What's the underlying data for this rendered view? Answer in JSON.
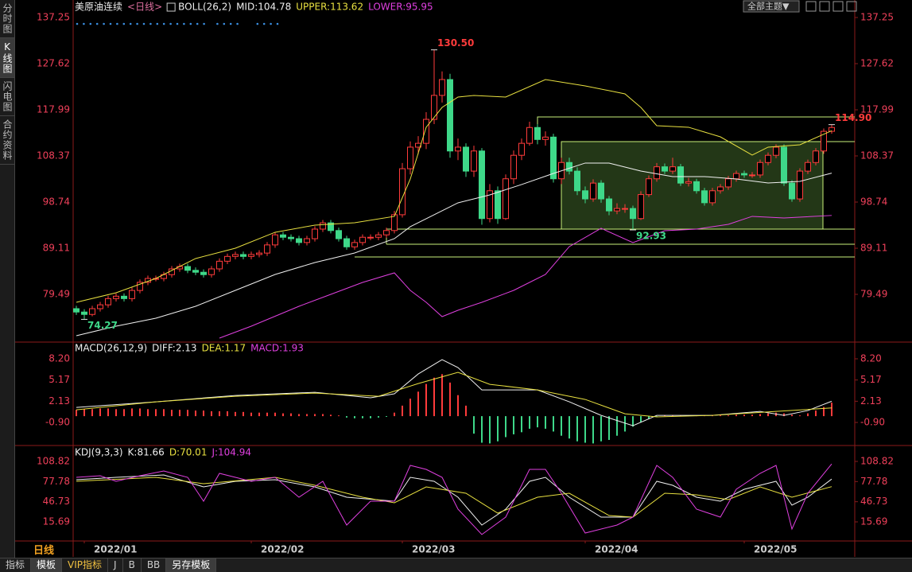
{
  "ui": {
    "side_tabs": [
      "分时图",
      "K线图",
      "闪电图",
      "合约资料"
    ],
    "theme_button": "全部主题▼",
    "period": "日线",
    "bottom_tabs": [
      "指标",
      "模板",
      "VIP指标",
      "J",
      "B",
      "BB",
      "另存模板"
    ]
  },
  "chart_data": [
    {
      "type": "candlestick",
      "title": "美原油连续",
      "period_label": "<日线>",
      "indicator": "BOLL(26,2)",
      "ylim": [
        69.86,
        138.41
      ],
      "yticks": [
        137.25,
        127.62,
        117.99,
        108.37,
        98.74,
        89.11,
        79.49
      ],
      "up_color": "#ff3b3b",
      "down_color": "#3ed889",
      "candles": {
        "open": [
          76.5,
          75.8,
          75.3,
          76.5,
          77.3,
          78.6,
          79.1,
          78.6,
          80.3,
          82.0,
          82.8,
          82.8,
          83.6,
          84.8,
          85.3,
          84.5,
          84.1,
          83.6,
          84.8,
          86.4,
          87.4,
          87.8,
          87.4,
          87.8,
          88.1,
          89.8,
          91.9,
          91.4,
          91.1,
          90.3,
          91.1,
          93.1,
          94.4,
          92.8,
          91.1,
          89.4,
          90.3,
          91.4,
          91.4,
          91.9,
          92.8,
          96.1,
          105.7,
          110.2,
          111.0,
          116.0,
          121.0,
          124.3,
          109.4,
          110.2,
          105.2,
          109.4,
          95.3,
          101.1,
          95.3,
          103.6,
          108.5,
          111.0,
          114.3,
          111.8,
          112.3,
          103.6,
          107.0,
          105.2,
          101.1,
          99.4,
          102.7,
          99.4,
          96.9,
          97.4,
          97.4,
          95.3,
          100.3,
          103.6,
          106.1,
          105.2,
          106.1,
          102.7,
          103.0,
          101.1,
          98.6,
          101.1,
          101.9,
          103.6,
          104.7,
          104.4,
          104.4,
          107.0,
          108.5,
          110.2,
          102.7,
          99.4,
          105.2,
          107.0,
          109.4,
          113.5
        ],
        "high": [
          77.1,
          76.4,
          77.1,
          77.9,
          79.2,
          79.7,
          79.7,
          80.9,
          82.6,
          83.4,
          83.4,
          84.2,
          85.4,
          85.9,
          85.9,
          85.1,
          84.7,
          85.4,
          87.0,
          88.0,
          88.4,
          88.4,
          88.4,
          88.7,
          90.4,
          92.5,
          92.5,
          92.0,
          91.7,
          91.7,
          93.7,
          95.0,
          95.0,
          93.4,
          91.7,
          90.9,
          92.0,
          92.0,
          92.5,
          93.4,
          96.9,
          106.9,
          111.4,
          112.5,
          117.5,
          130.5,
          126.0,
          125.5,
          112.0,
          111.0,
          110.5,
          110.0,
          102.5,
          102.0,
          104.5,
          109.5,
          112.0,
          115.5,
          115.0,
          113.5,
          113.0,
          108.0,
          108.0,
          106.0,
          102.0,
          103.5,
          103.3,
          100.0,
          98.5,
          98.3,
          98.0,
          101.0,
          104.3,
          106.9,
          106.8,
          108.0,
          106.7,
          103.8,
          103.6,
          101.7,
          101.7,
          102.5,
          104.2,
          105.3,
          105.3,
          105.0,
          107.6,
          109.1,
          110.8,
          110.8,
          103.3,
          105.8,
          107.6,
          110.0,
          114.1,
          114.9
        ],
        "low": [
          75.2,
          74.27,
          74.9,
          75.9,
          76.7,
          78.0,
          78.0,
          78.0,
          79.7,
          81.4,
          82.2,
          82.2,
          83.0,
          84.2,
          83.9,
          83.5,
          83.0,
          83.0,
          84.2,
          85.8,
          86.8,
          86.8,
          86.8,
          87.2,
          87.5,
          89.2,
          90.8,
          90.5,
          89.7,
          89.7,
          90.5,
          92.5,
          92.2,
          90.5,
          88.8,
          88.8,
          89.7,
          90.8,
          90.8,
          91.3,
          92.2,
          95.5,
          104.5,
          108.7,
          109.8,
          115.0,
          119.5,
          108.0,
          107.5,
          104.0,
          104.0,
          94.0,
          94.5,
          94.2,
          95.0,
          102.5,
          107.5,
          110.5,
          110.8,
          110.5,
          102.8,
          102.5,
          104.5,
          100.2,
          98.5,
          98.8,
          98.6,
          96.0,
          96.2,
          96.5,
          92.93,
          95.0,
          99.8,
          103.0,
          104.6,
          104.6,
          102.1,
          102.0,
          100.5,
          98.0,
          98.0,
          100.5,
          101.3,
          103.0,
          103.8,
          103.8,
          103.8,
          106.4,
          107.9,
          102.1,
          98.8,
          98.8,
          104.6,
          106.4,
          108.8,
          113.0
        ],
        "close": [
          75.8,
          75.3,
          76.5,
          77.3,
          78.6,
          79.1,
          78.6,
          80.3,
          82.0,
          82.8,
          82.8,
          83.6,
          84.8,
          85.3,
          84.5,
          84.1,
          83.6,
          84.8,
          86.4,
          87.4,
          87.8,
          87.4,
          87.8,
          88.1,
          89.8,
          91.9,
          91.4,
          91.1,
          90.3,
          91.1,
          93.1,
          94.4,
          92.8,
          91.1,
          89.4,
          90.3,
          91.4,
          91.4,
          91.9,
          92.8,
          96.1,
          105.7,
          110.2,
          111.0,
          116.0,
          121.0,
          124.3,
          109.4,
          110.2,
          105.2,
          109.4,
          95.3,
          101.1,
          95.3,
          103.6,
          108.5,
          111.0,
          114.3,
          111.8,
          112.3,
          103.6,
          107.0,
          105.2,
          101.1,
          99.4,
          102.7,
          99.4,
          96.9,
          97.4,
          97.4,
          95.3,
          100.3,
          103.6,
          106.1,
          105.2,
          106.1,
          102.7,
          103.0,
          101.1,
          98.6,
          101.1,
          101.9,
          103.6,
          104.7,
          104.4,
          104.4,
          107.0,
          108.5,
          110.2,
          102.7,
          99.4,
          105.2,
          107.0,
          109.4,
          113.5,
          114.3
        ]
      },
      "series": [
        {
          "name": "MID:104.78",
          "color": "#f0f0f0",
          "x": [
            0,
            5,
            10,
            15,
            20,
            25,
            30,
            35,
            40,
            42,
            45,
            48,
            52,
            56,
            60,
            64,
            67,
            71,
            75,
            79,
            83,
            87,
            91,
            95
          ],
          "values": [
            70.86,
            72.85,
            74.51,
            77.0,
            80.32,
            83.64,
            86.13,
            88.12,
            91.11,
            93.6,
            96.09,
            98.58,
            100.24,
            102.4,
            104.72,
            106.88,
            106.88,
            105.22,
            104.06,
            104.06,
            103.56,
            102.73,
            103.06,
            104.78
          ]
        },
        {
          "name": "UPPER:113.62",
          "color": "#e8e040",
          "x": [
            0,
            5,
            10,
            15,
            20,
            25,
            30,
            35,
            40,
            42,
            44,
            46,
            48,
            50,
            54,
            59,
            64,
            69,
            71,
            73,
            77,
            81,
            85,
            87,
            91,
            95
          ],
          "values": [
            77.83,
            79.82,
            82.81,
            86.96,
            89.12,
            92.44,
            93.93,
            94.43,
            95.76,
            103.56,
            114.35,
            118.49,
            120.65,
            120.98,
            120.65,
            124.3,
            122.98,
            121.32,
            118.49,
            114.68,
            114.35,
            112.35,
            108.54,
            110.2,
            110.69,
            113.62
          ]
        },
        {
          "name": "LOWER:95.95",
          "color": "#e040e0",
          "x": [
            18,
            22,
            28,
            32,
            36,
            40,
            42,
            44,
            46,
            48,
            51,
            55,
            59,
            62,
            66,
            70,
            74,
            78,
            82,
            85,
            89,
            95
          ],
          "values": [
            70.36,
            72.85,
            77.0,
            79.49,
            81.98,
            83.97,
            80.32,
            77.83,
            74.84,
            76.17,
            77.83,
            80.32,
            83.64,
            89.45,
            93.27,
            90.28,
            92.76,
            93.1,
            94.1,
            95.76,
            95.43,
            95.95
          ]
        }
      ],
      "annotations": [
        {
          "value": 130.5,
          "label": "130.50",
          "color": "#ff3b3b"
        },
        {
          "value": 114.9,
          "label": "114.90",
          "color": "#ff3b3b"
        },
        {
          "value": 74.27,
          "label": "74.27",
          "color": "#3ed889"
        },
        {
          "value": 92.93,
          "label": "92.93",
          "color": "#3ed889"
        }
      ]
    },
    {
      "type": "macd",
      "title": "MACD(26,12,9)",
      "ylim": [
        -3.97,
        9.45
      ],
      "yticks": [
        {
          "value": 8.2,
          "label": "8.20"
        },
        5.17,
        2.13,
        {
          "value": -0.9,
          "label": "-0.90"
        }
      ],
      "bars": {
        "name": "MACD:1.93",
        "color": "#e040e0",
        "up_color": "#ff3b3b",
        "down_color": "#3ed889",
        "values": [
          0.9,
          1.0,
          1.0,
          1.1,
          1.1,
          1.0,
          1.0,
          1.1,
          1.1,
          1.0,
          1.0,
          1.0,
          0.9,
          0.9,
          0.9,
          0.8,
          0.8,
          0.7,
          0.7,
          0.7,
          0.6,
          0.6,
          0.5,
          0.5,
          0.5,
          0.5,
          0.4,
          0.4,
          0.3,
          0.3,
          0.3,
          0.3,
          0.2,
          0.1,
          -0.2,
          -0.3,
          -0.3,
          -0.3,
          -0.2,
          -0.1,
          0.5,
          1.5,
          2.5,
          3.5,
          4.6,
          5.5,
          6.0,
          4.8,
          3.0,
          1.5,
          -2.5,
          -3.8,
          -3.9,
          -3.6,
          -3.0,
          -2.6,
          -2.3,
          -1.8,
          -1.6,
          -1.8,
          -2.2,
          -2.8,
          -3.2,
          -3.6,
          -3.8,
          -3.9,
          -3.6,
          -3.4,
          -2.8,
          -2.2,
          -1.5,
          -0.9,
          -0.4,
          -0.1,
          0.1,
          0.1,
          0.1,
          0.1,
          0.1,
          0.1,
          0.1,
          0.1,
          0.1,
          0.2,
          0.2,
          0.2,
          0.3,
          0.4,
          0.5,
          0.4,
          0.2,
          0.1,
          0.4,
          0.8,
          1.3,
          1.93
        ]
      },
      "series": [
        {
          "name": "DIFF:2.13",
          "color": "#f0f0f0",
          "x": [
            0,
            10,
            20,
            30,
            37,
            40,
            43,
            46,
            48,
            51,
            54,
            58,
            62,
            66,
            70,
            73,
            80,
            86,
            89,
            92,
            95
          ],
          "values": [
            1.25,
            2.05,
            2.96,
            3.41,
            2.62,
            3.19,
            6.03,
            8.08,
            6.94,
            3.75,
            3.75,
            3.75,
            2.05,
            0.11,
            -1.37,
            0.11,
            0.11,
            0.68,
            0.11,
            0.8,
            2.13
          ]
        },
        {
          "name": "DEA:1.17",
          "color": "#e8e040",
          "x": [
            0,
            10,
            20,
            30,
            38,
            43,
            48,
            52,
            58,
            64,
            69,
            73,
            80,
            88,
            95
          ],
          "values": [
            0.91,
            2.05,
            2.84,
            3.3,
            2.84,
            4.66,
            6.26,
            4.55,
            3.75,
            2.39,
            0.34,
            -0.11,
            0.11,
            0.68,
            1.17
          ]
        }
      ]
    },
    {
      "type": "kdj",
      "title": "KDJ(9,3,3)",
      "ylim": [
        -13.72,
        114.95
      ],
      "yticks": [
        108.82,
        77.78,
        46.73,
        15.69
      ],
      "xticks": [
        {
          "value": 1,
          "label": "2022/01"
        },
        {
          "value": 22,
          "label": "2022/02"
        },
        {
          "value": 41,
          "label": "2022/03"
        },
        {
          "value": 64,
          "label": "2022/04"
        },
        {
          "value": 84,
          "label": "2022/05"
        }
      ],
      "series": [
        {
          "name": "K:81.66",
          "color": "#f0f0f0",
          "x": [
            0,
            5,
            11,
            16,
            20,
            25,
            30,
            34,
            40,
            42,
            45,
            48,
            51,
            54,
            57,
            59,
            62,
            66,
            70,
            73,
            75,
            78,
            81,
            84,
            88,
            90,
            92,
            95
          ],
          "values": [
            80.63,
            84.31,
            87.99,
            69.6,
            78.18,
            80.63,
            69.6,
            53.67,
            47.55,
            84.31,
            78.18,
            53.67,
            10.78,
            35.29,
            78.18,
            84.31,
            53.67,
            23.04,
            23.04,
            78.18,
            72.05,
            53.67,
            47.55,
            65.93,
            78.18,
            41.42,
            53.67,
            81.66
          ]
        },
        {
          "name": "D:70.01",
          "color": "#e8e040",
          "x": [
            0,
            10,
            16,
            25,
            30,
            36,
            40,
            44,
            49,
            53,
            58,
            62,
            67,
            70,
            74,
            78,
            82,
            86,
            90,
            95
          ],
          "values": [
            78.18,
            84.31,
            74.5,
            84.31,
            72.05,
            53.67,
            45.09,
            69.6,
            59.8,
            29.16,
            53.67,
            59.8,
            25.49,
            23.04,
            59.8,
            57.35,
            50.0,
            69.6,
            53.67,
            70.01
          ]
        },
        {
          "name": "J:104.94",
          "color": "#e040e0",
          "x": [
            0,
            3,
            5,
            8,
            11,
            14,
            16,
            18,
            22,
            25,
            28,
            31,
            34,
            37,
            40,
            42,
            44,
            46,
            48,
            51,
            54,
            57,
            59,
            61,
            64,
            68,
            70,
            73,
            75,
            78,
            81,
            83,
            86,
            88,
            90,
            92,
            95
          ],
          "values": [
            84.31,
            86.76,
            78.18,
            86.76,
            94.11,
            84.31,
            47.55,
            90.44,
            78.18,
            84.31,
            53.67,
            78.18,
            10.78,
            47.55,
            47.55,
            102.69,
            96.57,
            84.31,
            35.29,
            -3.73,
            23.04,
            96.57,
            96.57,
            59.8,
            -1.47,
            10.78,
            23.04,
            102.69,
            84.31,
            35.29,
            23.04,
            65.93,
            90.44,
            102.69,
            4.65,
            59.8,
            104.94
          ]
        }
      ]
    }
  ]
}
